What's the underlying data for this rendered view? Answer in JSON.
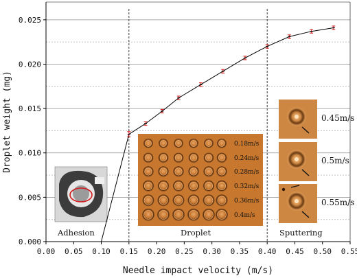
{
  "chart_data": {
    "type": "line",
    "xlabel": "Needle impact velocity (m/s)",
    "ylabel": "Droplet weight (mg)",
    "xlim": [
      0,
      0.55
    ],
    "ylim": [
      0,
      0.027
    ],
    "x_ticks": [
      "0.00",
      "0.05",
      "0.10",
      "0.15",
      "0.20",
      "0.25",
      "0.30",
      "0.35",
      "0.40",
      "0.45",
      "0.50",
      "0.55"
    ],
    "y_ticks": [
      "0.000",
      "0.005",
      "0.010",
      "0.015",
      "0.020",
      "0.025"
    ],
    "grid": "horizontal dashed",
    "series": [
      {
        "x": [
          0.1,
          0.15,
          0.18,
          0.21,
          0.24,
          0.28,
          0.32,
          0.36,
          0.4,
          0.44,
          0.48,
          0.52
        ],
        "y": [
          0.0,
          0.0121,
          0.0133,
          0.0147,
          0.0162,
          0.0177,
          0.0192,
          0.0207,
          0.022,
          0.0231,
          0.0237,
          0.0241
        ],
        "error": [
          0,
          0.0003,
          0.0002,
          0.0002,
          0.0002,
          0.0002,
          0.0002,
          0.0002,
          0.0002,
          0.0002,
          0.0002,
          0.0002
        ]
      }
    ],
    "regions": [
      {
        "label": "Adhesion",
        "x_range": [
          0,
          0.15
        ]
      },
      {
        "label": "Droplet",
        "x_range": [
          0.15,
          0.4
        ]
      },
      {
        "label": "Sputtering",
        "x_range": [
          0.4,
          0.55
        ]
      }
    ],
    "region_boundaries": [
      0.15,
      0.4
    ],
    "droplet_inset_labels": [
      "0.18m/s",
      "0.24m/s",
      "0.28m/s",
      "0.32m/s",
      "0.36m/s",
      "0.4m/s"
    ],
    "sputter_inset_labels": [
      "0.45m/s",
      "0.5m/s",
      "0.55m/s"
    ],
    "colors": {
      "line": "#000000",
      "error": "#d21a1a",
      "grid": "#9a9a9a",
      "photo_orange": "#c8782e",
      "ellipse": "#d21a1a"
    }
  }
}
